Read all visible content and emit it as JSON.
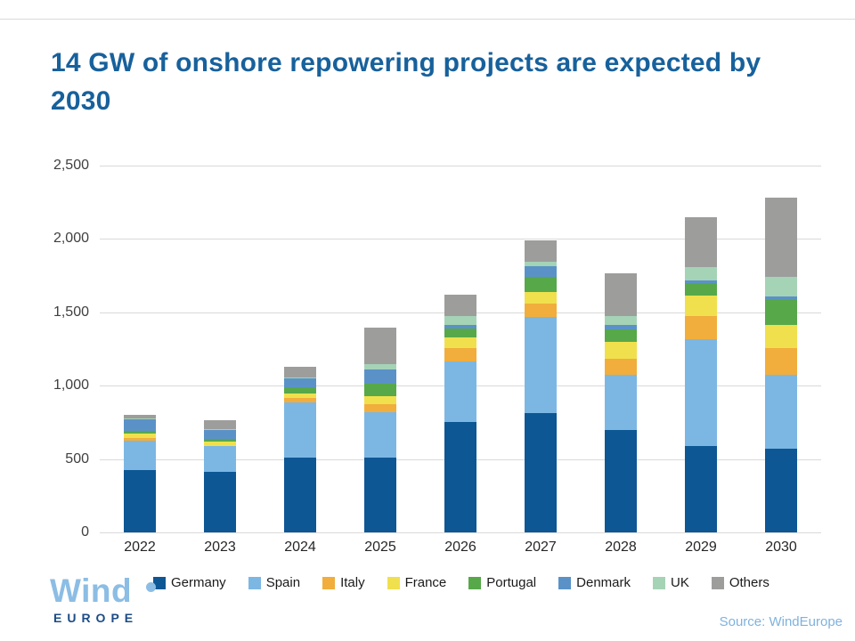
{
  "title": "14 GW of onshore repowering projects are expected by 2030",
  "source_note": "Source: WindEurope",
  "logo": {
    "line1": "Wind",
    "line2": "EUROPE"
  },
  "colors": {
    "title_blue": "#17619c",
    "gridline": "#d9d9d9",
    "axis_text": "#3f3f3f",
    "logo_light_blue": "#8cbde4",
    "logo_navy": "#1c4c86",
    "source_blue": "#7fb2de"
  },
  "chart_data": {
    "type": "bar",
    "stacked": true,
    "unit": "MW",
    "title": "14 GW of onshore repowering projects are expected by 2030",
    "xlabel": "",
    "ylabel": "",
    "ylim": [
      0,
      2500
    ],
    "grid": true,
    "legend_position": "bottom",
    "categories": [
      "2022",
      "2023",
      "2024",
      "2025",
      "2026",
      "2027",
      "2028",
      "2029",
      "2030"
    ],
    "yticks": [
      {
        "label": "0",
        "value": 0
      },
      {
        "label": "500",
        "value": 500
      },
      {
        "label": "1,000",
        "value": 1000
      },
      {
        "label": "1,500",
        "value": 1500
      },
      {
        "label": "2,000",
        "value": 2000
      },
      {
        "label": "2,500",
        "value": 2500
      }
    ],
    "series": [
      {
        "name": "Germany",
        "color": "#0d5795",
        "values": [
          425,
          415,
          510,
          510,
          750,
          815,
          695,
          590,
          570
        ]
      },
      {
        "name": "Spain",
        "color": "#7cb7e4",
        "values": [
          200,
          170,
          375,
          310,
          415,
          650,
          375,
          725,
          505
        ]
      },
      {
        "name": "Italy",
        "color": "#f1ae3c",
        "values": [
          15,
          5,
          30,
          50,
          90,
          90,
          110,
          160,
          180
        ]
      },
      {
        "name": "France",
        "color": "#f0e04d",
        "values": [
          30,
          30,
          30,
          60,
          75,
          80,
          115,
          135,
          160
        ]
      },
      {
        "name": "Portugal",
        "color": "#57a849",
        "values": [
          20,
          15,
          45,
          80,
          60,
          105,
          85,
          85,
          170
        ]
      },
      {
        "name": "Denmark",
        "color": "#5a92c8",
        "values": [
          80,
          65,
          60,
          100,
          25,
          70,
          35,
          20,
          20
        ]
      },
      {
        "name": "UK",
        "color": "#a5d3b6",
        "values": [
          5,
          5,
          5,
          35,
          60,
          35,
          60,
          90,
          135
        ]
      },
      {
        "name": "Others",
        "color": "#9d9d9c",
        "values": [
          25,
          60,
          75,
          250,
          145,
          145,
          290,
          340,
          540
        ]
      }
    ]
  }
}
